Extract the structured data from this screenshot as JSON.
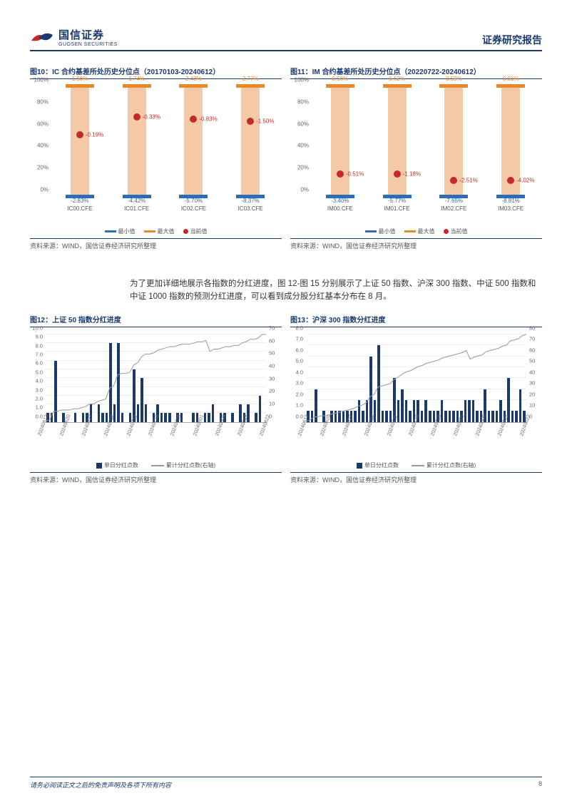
{
  "header": {
    "logo_cn": "国信证券",
    "logo_en": "GUOSEN SECURITIES",
    "report_title": "证券研究报告"
  },
  "chart10": {
    "title": "图10：IC 合约基差所处历史分位点（20170103-20240612）",
    "y_ticks": [
      "0%",
      "20%",
      "40%",
      "60%",
      "80%",
      "100%"
    ],
    "legend": {
      "min": "最小值",
      "max": "最大值",
      "cur": "当前值"
    },
    "colors": {
      "body": "#f4c9a8",
      "max": "#e88a2c",
      "min": "#2e6db5",
      "cur": "#c62828"
    },
    "series": [
      {
        "cat": "IC00.CFE",
        "max_lbl": "1.56%",
        "min_lbl": "-2.83%",
        "cur_lbl": "-0.19%",
        "cur_pct": 56
      },
      {
        "cat": "IC01.CFE",
        "max_lbl": "1.74%",
        "min_lbl": "-4.42%",
        "cur_lbl": "-0.33%",
        "cur_pct": 72
      },
      {
        "cat": "IC02.CFE",
        "max_lbl": "2.43%",
        "min_lbl": "-5.70%",
        "cur_lbl": "-0.83%",
        "cur_pct": 70
      },
      {
        "cat": "IC03.CFE",
        "max_lbl": "2.77%",
        "min_lbl": "-8.37%",
        "cur_lbl": "-1.50%",
        "cur_pct": 68
      }
    ],
    "source": "资料来源：WIND，国信证券经济研究所整理"
  },
  "chart11": {
    "title": "图11：IM 合约基差所处历史分位点（20220722-20240612）",
    "y_ticks": [
      "0%",
      "20%",
      "40%",
      "60%",
      "80%",
      "100%"
    ],
    "legend": {
      "min": "最小值",
      "max": "最大值",
      "cur": "当前值"
    },
    "colors": {
      "body": "#f4c9a8",
      "max": "#e88a2c",
      "min": "#2e6db5",
      "cur": "#c62828"
    },
    "series": [
      {
        "cat": "IM00.CFE",
        "max_lbl": "0.58%",
        "min_lbl": "-3.40%",
        "cur_lbl": "-0.51%",
        "cur_pct": 20
      },
      {
        "cat": "IM01.CFE",
        "max_lbl": "0.62%",
        "min_lbl": "-5.77%",
        "cur_lbl": "-1.18%",
        "cur_pct": 20
      },
      {
        "cat": "IM02.CFE",
        "max_lbl": "0.59%",
        "min_lbl": "-7.65%",
        "cur_lbl": "-2.51%",
        "cur_pct": 14
      },
      {
        "cat": "IM03.CFE",
        "max_lbl": "0.01%",
        "min_lbl": "-8.81%",
        "cur_lbl": "-4.02%",
        "cur_pct": 14
      }
    ],
    "source": "资料来源：WIND，国信证券经济研究所整理"
  },
  "body_para": "为了更加详细地展示各指数的分红进度，图 12-图 15 分别展示了上证 50 指数、沪深 300 指数、中证 500 指数和中证 1000 指数的预测分红进度，可以看到成分股分红基本分布在 8 月。",
  "chart12": {
    "title": "图12：上证 50 指数分红进度",
    "yl_max": 10,
    "yl_ticks": [
      "0.0",
      "1.0",
      "2.0",
      "3.0",
      "4.0",
      "5.0",
      "6.0",
      "7.0",
      "8.0",
      "9.0",
      "10.0"
    ],
    "yr_max": 70,
    "yr_ticks": [
      "0",
      "10",
      "20",
      "30",
      "40",
      "50",
      "60",
      "70"
    ],
    "x_labels": [
      "20240613",
      "20240620",
      "20240627",
      "20240704",
      "20240711",
      "20240718",
      "20240725",
      "20240801",
      "20240808",
      "20240815",
      "20240822"
    ],
    "bars": [
      1,
      1,
      7,
      0,
      1,
      0,
      0,
      1,
      0,
      1,
      1,
      2,
      0,
      2,
      1,
      1,
      9,
      2,
      9,
      1,
      0,
      1,
      6,
      2,
      5,
      2,
      0,
      1,
      2,
      1,
      1,
      1,
      0,
      1,
      1,
      0,
      0,
      1,
      1,
      0,
      1,
      1,
      2,
      0,
      1,
      1,
      0,
      1,
      0,
      2,
      1,
      2,
      0,
      1,
      3,
      0
    ],
    "line": [
      1,
      2,
      9,
      9,
      10,
      10,
      10,
      11,
      11,
      12,
      13,
      15,
      15,
      17,
      18,
      19,
      28,
      30,
      39,
      40,
      40,
      41,
      47,
      49,
      54,
      56,
      56,
      57,
      59,
      60,
      61,
      62,
      62,
      63,
      64,
      64,
      64,
      65,
      66,
      66,
      67,
      58,
      60,
      60,
      61,
      62,
      62,
      63,
      63,
      65,
      66,
      68,
      68,
      69,
      72,
      72
    ],
    "legend": {
      "bar": "单日分红点数",
      "line": "累计分红点数(右轴)"
    },
    "source": "资料来源：WIND，国信证券经济研究所整理",
    "colors": {
      "bar": "#1a3a6e",
      "line": "#999999",
      "grid": "#eeeeee"
    }
  },
  "chart13": {
    "title": "图13：沪深 300 指数分红进度",
    "yl_max": 8,
    "yl_ticks": [
      "0.0",
      "1.0",
      "2.0",
      "3.0",
      "4.0",
      "5.0",
      "6.0",
      "7.0",
      "8.0"
    ],
    "yr_max": 80,
    "yr_ticks": [
      "0",
      "10",
      "20",
      "30",
      "40",
      "50",
      "60",
      "70",
      "80"
    ],
    "x_labels": [
      "20240613",
      "20240620",
      "20240627",
      "20240704",
      "20240711",
      "20240718",
      "20240725",
      "20240801",
      "20240808",
      "20240815",
      "20240822"
    ],
    "bars": [
      1,
      1,
      3,
      0,
      1,
      0,
      1,
      1,
      1,
      1,
      1,
      1,
      1,
      2,
      1,
      2,
      6,
      2,
      7,
      1,
      1,
      1,
      4,
      2,
      3,
      2,
      1,
      2,
      2,
      1,
      2,
      1,
      1,
      1,
      2,
      1,
      1,
      1,
      1,
      1,
      2,
      2,
      2,
      1,
      1,
      3,
      1,
      1,
      1,
      2,
      1,
      4,
      1,
      1,
      3,
      1
    ],
    "line": [
      1,
      2,
      5,
      5,
      6,
      6,
      7,
      8,
      9,
      10,
      11,
      12,
      13,
      15,
      16,
      18,
      24,
      26,
      33,
      34,
      35,
      36,
      40,
      42,
      45,
      47,
      48,
      50,
      52,
      53,
      55,
      56,
      57,
      58,
      60,
      61,
      62,
      63,
      64,
      65,
      67,
      59,
      61,
      62,
      63,
      66,
      67,
      68,
      69,
      71,
      72,
      76,
      77,
      78,
      81,
      82
    ],
    "legend": {
      "bar": "单日分红点数",
      "line": "累计分红点数(右轴)"
    },
    "source": "资料来源：WIND，国信证券经济研究所整理",
    "colors": {
      "bar": "#1a3a6e",
      "line": "#999999",
      "grid": "#eeeeee"
    }
  },
  "footer": {
    "disclaimer": "请务必阅读正文之后的免责声明及各项下所有内容",
    "page": "8"
  }
}
